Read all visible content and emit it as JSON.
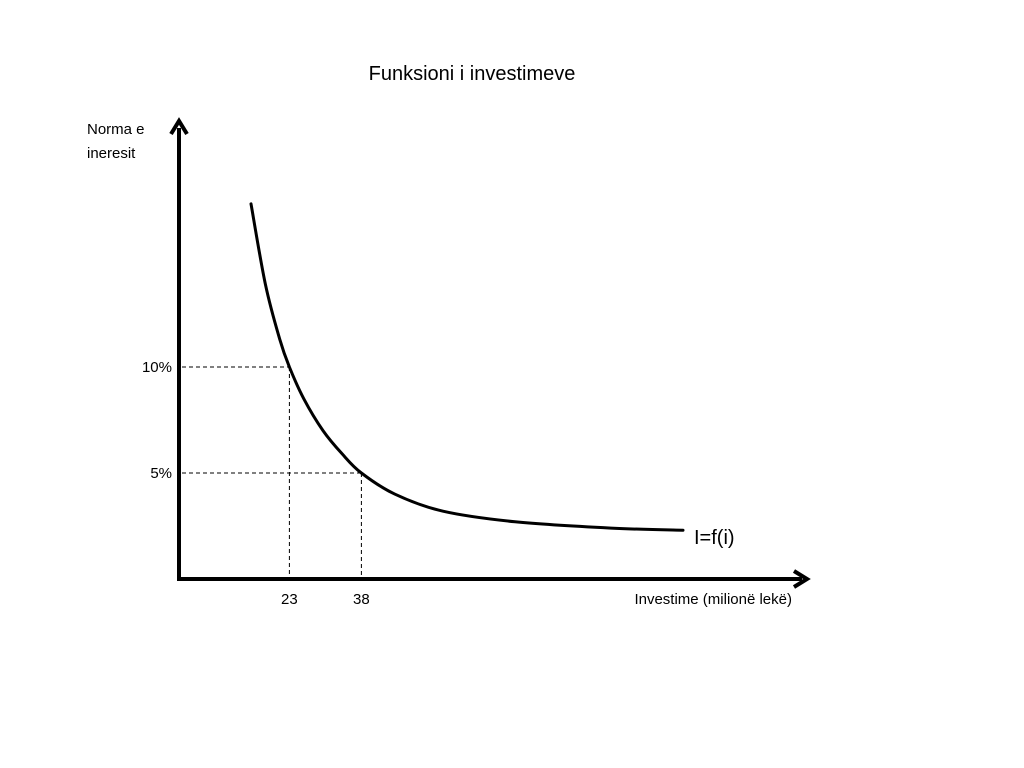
{
  "chart_data": {
    "type": "line",
    "title": "Funksioni i investimeve",
    "ylabel_lines": [
      "Norma e",
      "ineresit"
    ],
    "xlabel": "Investime (milionë lekë)",
    "series": [
      {
        "name": "I=f(i)",
        "x": [
          15,
          18,
          21,
          23,
          26,
          30,
          34,
          38,
          45,
          55,
          70,
          90,
          105
        ],
        "y": [
          17.7,
          13.9,
          11.3,
          10.0,
          8.5,
          7.0,
          5.9,
          5.0,
          4.0,
          3.2,
          2.7,
          2.4,
          2.3
        ]
      }
    ],
    "reference_points": [
      {
        "x": 23,
        "y": 10,
        "x_label": "23",
        "y_label": "10%"
      },
      {
        "x": 38,
        "y": 5,
        "x_label": "38",
        "y_label": "5%"
      }
    ],
    "grid": false
  }
}
